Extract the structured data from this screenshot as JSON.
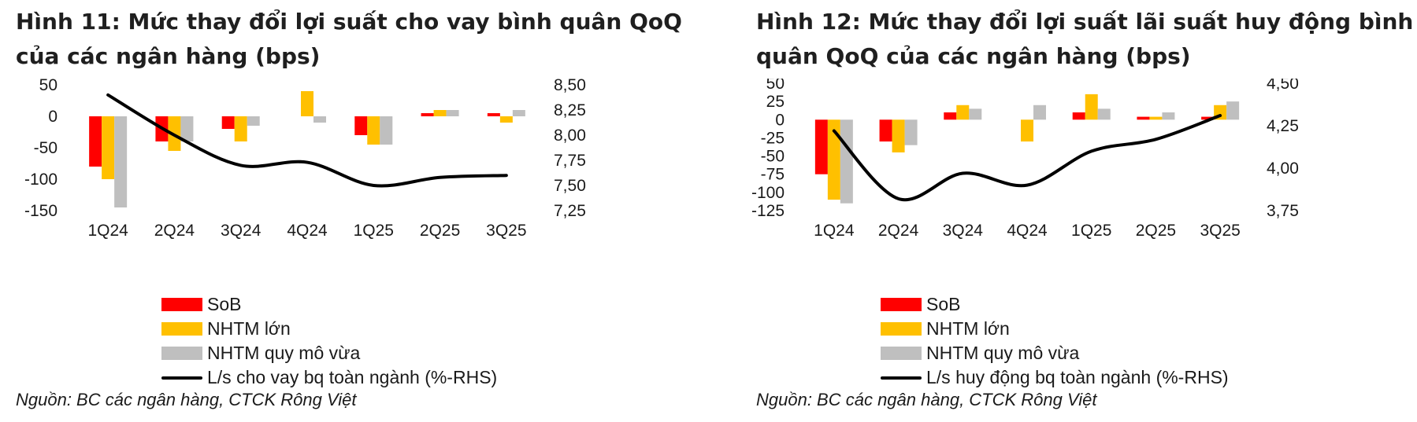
{
  "colors": {
    "sob": "#ff0000",
    "large": "#ffc000",
    "mid": "#bfbfbf",
    "line": "#000000"
  },
  "charts": [
    {
      "title": "Hình 11: Mức thay đổi lợi suất cho vay bình quân QoQ của các ngân hàng (bps)",
      "legend": {
        "sob": "SoB",
        "large": "NHTM lớn",
        "mid": "NHTM quy mô vừa",
        "line": "L/s cho vay bq toàn ngành (%-RHS)"
      },
      "source": "Nguồn: BC các ngân hàng, CTCK Rông Việt",
      "chart_data": {
        "type": "bar",
        "categories": [
          "1Q24",
          "2Q24",
          "3Q24",
          "4Q24",
          "1Q25",
          "2Q25",
          "3Q25"
        ],
        "series": [
          {
            "name": "SoB",
            "values": [
              -80,
              -40,
              -20,
              0,
              -30,
              5,
              5
            ]
          },
          {
            "name": "NHTM lớn",
            "values": [
              -100,
              -55,
              -40,
              40,
              -45,
              10,
              -10
            ]
          },
          {
            "name": "NHTM quy mô vừa",
            "values": [
              -145,
              -40,
              -15,
              -10,
              -45,
              10,
              10
            ]
          }
        ],
        "line": {
          "name": "L/s cho vay bq toàn ngành (%-RHS)",
          "values": [
            8.4,
            8.0,
            7.7,
            7.73,
            7.5,
            7.58,
            7.6
          ]
        },
        "ylim": [
          -150,
          50
        ],
        "yticks": [
          50,
          0,
          -50,
          -100,
          -150
        ],
        "ytick_labels": [
          "50",
          "0",
          "-50",
          "-100",
          "-150"
        ],
        "y2lim": [
          7.25,
          8.5
        ],
        "y2ticks": [
          8.5,
          8.25,
          8.0,
          7.75,
          7.5,
          7.25
        ],
        "y2tick_labels": [
          "8,50",
          "8,25",
          "8,00",
          "7,75",
          "7,50",
          "7,25"
        ]
      }
    },
    {
      "title": "Hình 12: Mức thay đổi lợi suất lãi suất huy động bình quân QoQ của các ngân hàng (bps)",
      "legend": {
        "sob": "SoB",
        "large": "NHTM lớn",
        "mid": "NHTM quy mô vừa",
        "line": "L/s huy động bq toàn ngành (%-RHS)"
      },
      "source": "Nguồn: BC các ngân hàng, CTCK Rông Việt",
      "chart_data": {
        "type": "bar",
        "categories": [
          "1Q24",
          "2Q24",
          "3Q24",
          "4Q24",
          "1Q25",
          "2Q25",
          "3Q25"
        ],
        "series": [
          {
            "name": "SoB",
            "values": [
              -75,
              -30,
              10,
              0,
              10,
              4,
              4
            ]
          },
          {
            "name": "NHTM lớn",
            "values": [
              -110,
              -45,
              20,
              -30,
              35,
              4,
              20
            ]
          },
          {
            "name": "NHTM quy mô vừa",
            "values": [
              -115,
              -35,
              15,
              20,
              15,
              10,
              25
            ]
          }
        ],
        "line": {
          "name": "L/s huy động bq toàn ngành (%-RHS)",
          "values": [
            4.22,
            3.82,
            3.97,
            3.9,
            4.1,
            4.17,
            4.31
          ]
        },
        "ylim": [
          -125,
          50
        ],
        "yticks": [
          50,
          25,
          0,
          -25,
          -50,
          -75,
          -100,
          -125
        ],
        "ytick_labels": [
          "50",
          "25",
          "0",
          "-25",
          "-50",
          "-75",
          "-100",
          "-125"
        ],
        "y2lim": [
          3.75,
          4.5
        ],
        "y2ticks": [
          4.5,
          4.25,
          4.0,
          3.75
        ],
        "y2tick_labels": [
          "4,50",
          "4,25",
          "4,00",
          "3,75"
        ]
      }
    }
  ]
}
